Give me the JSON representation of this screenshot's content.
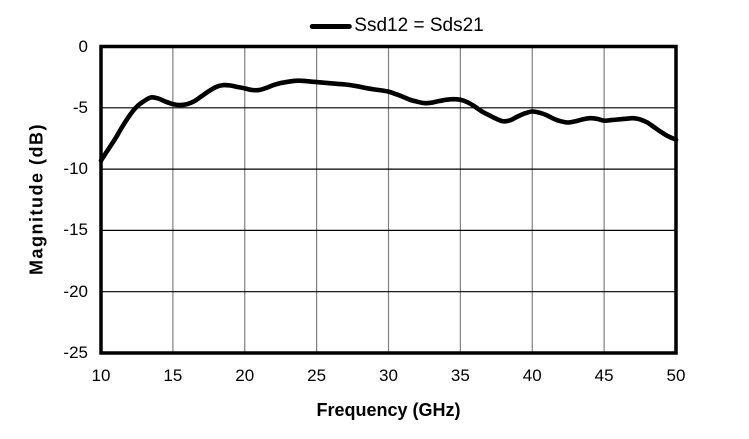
{
  "chart_data": {
    "type": "line",
    "title": "",
    "legend": {
      "label": "Ssd12 = Sds21",
      "position": "top-center",
      "marker": "thick-line"
    },
    "xlabel": "Frequency (GHz)",
    "ylabel": "Magnitude (dB)",
    "xlim": [
      10,
      50
    ],
    "ylim": [
      -25,
      0
    ],
    "x_ticks": [
      10,
      15,
      20,
      25,
      30,
      35,
      40,
      45,
      50
    ],
    "y_ticks": [
      0,
      -5,
      -10,
      -15,
      -20,
      -25
    ],
    "grid": true,
    "colors": {
      "line": "#000000",
      "frame": "#000000",
      "h_grid": "#000000",
      "v_grid": "#808080",
      "background": "#ffffff"
    },
    "series": [
      {
        "name": "Ssd12 = Sds21",
        "x": [
          10,
          10.5,
          11,
          11.5,
          12,
          12.5,
          13,
          13.5,
          14,
          14.5,
          15,
          15.5,
          16,
          16.5,
          17,
          17.5,
          18,
          18.5,
          19,
          19.5,
          20,
          20.5,
          21,
          21.5,
          22,
          22.5,
          23,
          23.5,
          24,
          24.5,
          25,
          25.5,
          26,
          26.5,
          27,
          27.5,
          28,
          28.5,
          29,
          29.5,
          30,
          30.5,
          31,
          31.5,
          32,
          32.5,
          33,
          33.5,
          34,
          34.5,
          35,
          35.5,
          36,
          36.5,
          37,
          37.5,
          38,
          38.5,
          39,
          39.5,
          40,
          40.5,
          41,
          41.5,
          42,
          42.5,
          43,
          43.5,
          44,
          44.5,
          45,
          45.5,
          46,
          46.5,
          47,
          47.5,
          48,
          48.5,
          49,
          49.5,
          50
        ],
        "y": [
          -9.3,
          -8.4,
          -7.5,
          -6.5,
          -5.6,
          -4.9,
          -4.45,
          -4.15,
          -4.25,
          -4.5,
          -4.7,
          -4.78,
          -4.7,
          -4.45,
          -4.05,
          -3.65,
          -3.3,
          -3.15,
          -3.18,
          -3.3,
          -3.42,
          -3.55,
          -3.55,
          -3.38,
          -3.15,
          -2.98,
          -2.88,
          -2.8,
          -2.8,
          -2.85,
          -2.9,
          -2.95,
          -3.0,
          -3.05,
          -3.1,
          -3.18,
          -3.28,
          -3.4,
          -3.5,
          -3.58,
          -3.68,
          -3.88,
          -4.1,
          -4.35,
          -4.5,
          -4.62,
          -4.58,
          -4.45,
          -4.35,
          -4.3,
          -4.35,
          -4.55,
          -4.9,
          -5.3,
          -5.6,
          -5.9,
          -6.1,
          -6.0,
          -5.7,
          -5.45,
          -5.3,
          -5.4,
          -5.6,
          -5.9,
          -6.1,
          -6.2,
          -6.1,
          -5.95,
          -5.85,
          -5.9,
          -6.05,
          -6.0,
          -5.95,
          -5.9,
          -5.85,
          -5.95,
          -6.2,
          -6.6,
          -7.0,
          -7.35,
          -7.6
        ]
      }
    ]
  }
}
